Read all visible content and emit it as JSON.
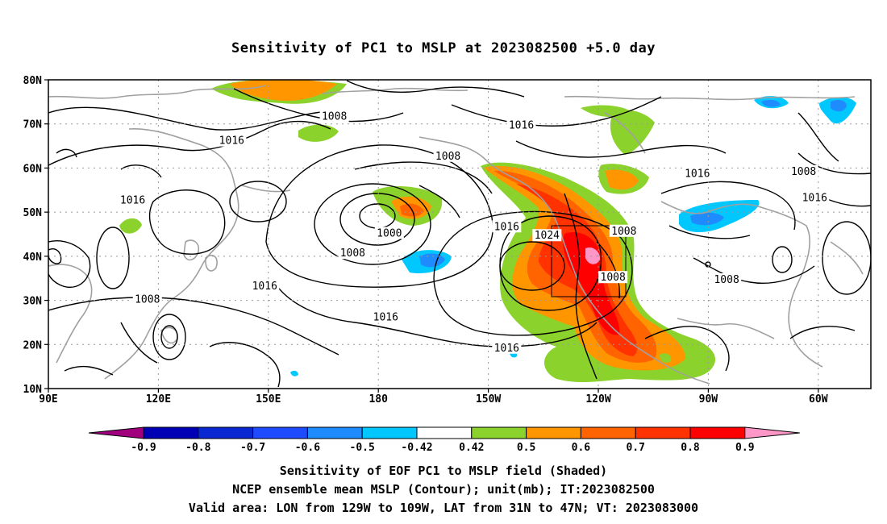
{
  "title": "Sensitivity of PC1 to MSLP at 2023082500 +5.0 day",
  "lat_labels": [
    "80N",
    "70N",
    "60N",
    "50N",
    "40N",
    "30N",
    "20N",
    "10N"
  ],
  "lon_labels": [
    "90E",
    "120E",
    "150E",
    "180",
    "150W",
    "120W",
    "90W",
    "60W"
  ],
  "contour_labels": [
    {
      "text": "1008",
      "lon": 168,
      "lat": 71.5
    },
    {
      "text": "1016",
      "lon": -141,
      "lat": 69.5
    },
    {
      "text": "1016",
      "lon": 140,
      "lat": 66
    },
    {
      "text": "1008",
      "lon": -161,
      "lat": 62.5
    },
    {
      "text": "1016",
      "lon": -93,
      "lat": 58.5
    },
    {
      "text": "1008",
      "lon": -64,
      "lat": 59
    },
    {
      "text": "1016",
      "lon": 113,
      "lat": 52.5
    },
    {
      "text": "1016",
      "lon": -61,
      "lat": 53
    },
    {
      "text": "1000",
      "lon": -177,
      "lat": 45
    },
    {
      "text": "1016",
      "lon": -145,
      "lat": 46.5
    },
    {
      "text": "1024",
      "lon": -134,
      "lat": 44.5
    },
    {
      "text": "1008",
      "lon": -113,
      "lat": 45.5
    },
    {
      "text": "1008",
      "lon": 173,
      "lat": 40.5
    },
    {
      "text": "1008",
      "lon": -116,
      "lat": 35
    },
    {
      "text": "1016",
      "lon": 149,
      "lat": 33
    },
    {
      "text": "1008",
      "lon": -85,
      "lat": 34.5
    },
    {
      "text": "1008",
      "lon": 117,
      "lat": 30
    },
    {
      "text": "1016",
      "lon": -178,
      "lat": 26
    },
    {
      "text": "1016",
      "lon": -145,
      "lat": 19
    }
  ],
  "colorbar": {
    "labels": [
      "-0.9",
      "-0.8",
      "-0.7",
      "-0.6",
      "-0.5",
      "-0.42",
      "0.42",
      "0.5",
      "0.6",
      "0.7",
      "0.8",
      "0.9"
    ],
    "colors": [
      "#a0007d",
      "#0000b4",
      "#0a28d2",
      "#1e4bff",
      "#1e8cff",
      "#00c8ff",
      "#ffffff",
      "#8cd22d",
      "#ff9600",
      "#ff6400",
      "#ff3200",
      "#ff0000",
      "#ff96c8"
    ]
  },
  "caption_lines": [
    "Sensitivity of EOF PC1 to MSLP field (Shaded)",
    "NCEP ensemble mean MSLP (Contour); unit(mb); IT:2023082500",
    "Valid area: LON from 129W to 109W, LAT from 31N to 47N; VT: 2023083000"
  ]
}
